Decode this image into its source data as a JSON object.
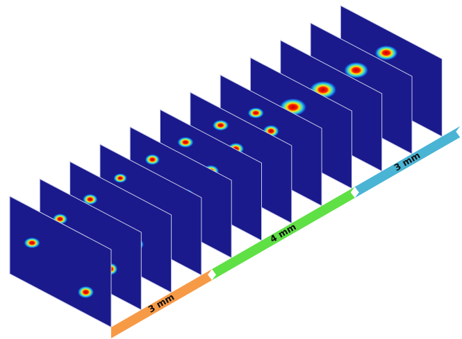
{
  "segments": [
    {
      "label": "3 mm"
    },
    {
      "label": "4 mm"
    },
    {
      "label": "3 mm"
    }
  ]
}
